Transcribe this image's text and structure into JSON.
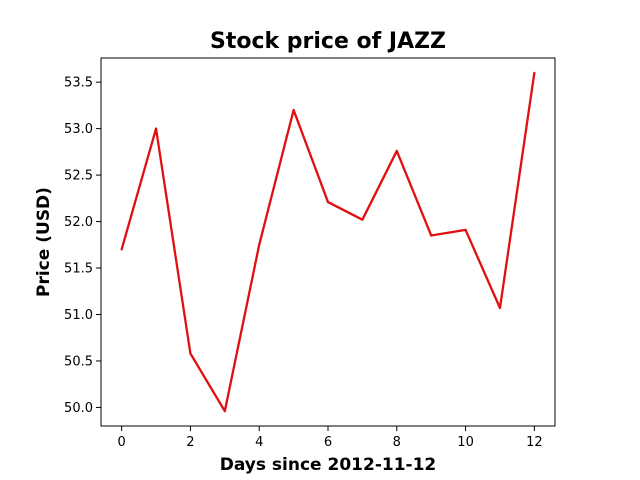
{
  "chart_data": {
    "type": "line",
    "title": "Stock price of JAZZ",
    "xlabel": "Days since 2012-11-12",
    "ylabel": "Price (USD)",
    "x": [
      0,
      1,
      2,
      3,
      4,
      5,
      6,
      7,
      8,
      9,
      10,
      11,
      12
    ],
    "series": [
      {
        "values": [
          51.7,
          53.0,
          50.58,
          49.96,
          51.75,
          53.2,
          52.21,
          52.02,
          52.76,
          51.85,
          51.91,
          51.07,
          53.6
        ],
        "color": "#e01010"
      }
    ],
    "xlim": [
      -0.6,
      12.6
    ],
    "ylim": [
      49.8,
      53.76
    ],
    "xticks": [
      0,
      2,
      4,
      6,
      8,
      10,
      12
    ],
    "xtick_labels": [
      "0",
      "2",
      "4",
      "6",
      "8",
      "10",
      "12"
    ],
    "yticks": [
      50.0,
      50.5,
      51.0,
      51.5,
      52.0,
      52.5,
      53.0,
      53.5
    ],
    "ytick_labels": [
      "50.0",
      "50.5",
      "51.0",
      "51.5",
      "52.0",
      "52.5",
      "53.0",
      "53.5"
    ],
    "grid": false,
    "legend": false
  }
}
